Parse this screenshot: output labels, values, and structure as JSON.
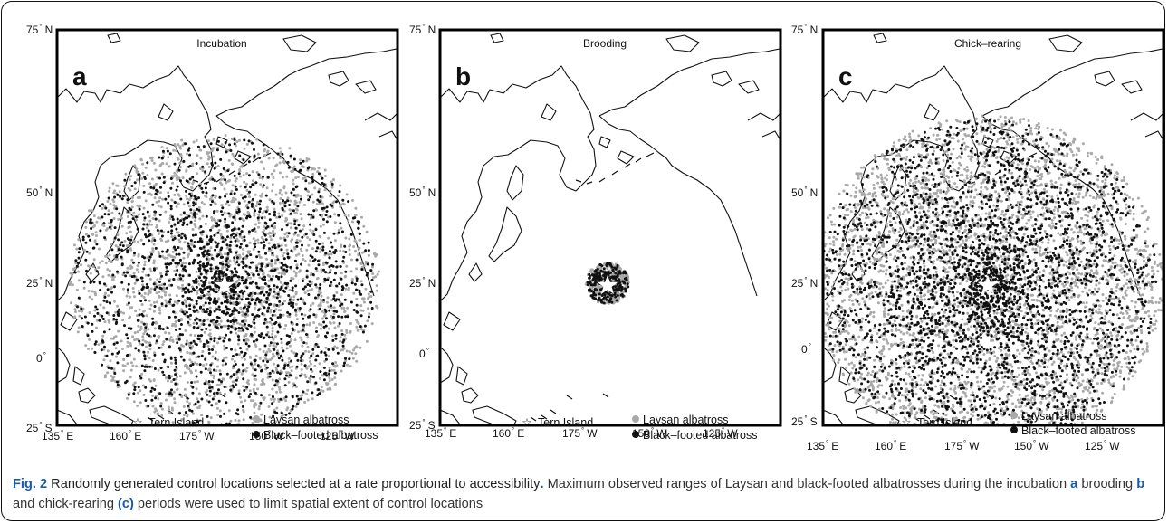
{
  "figure": {
    "caption": {
      "label": "Fig. 2",
      "title": "Randomly generated control locations selected at a rate proportional to accessibility",
      "title_end": ".",
      "text_1": " Maximum observed ranges of Laysan and black-footed albatrosses during the incubation ",
      "ref_a": "a",
      "text_2": " brooding ",
      "ref_b": "b",
      "text_3": " and chick-rearing ",
      "ref_c": "(c)",
      "text_4": " periods were used to limit spatial extent of control locations"
    },
    "panels": [
      {
        "letter": "a",
        "title": "Incubation",
        "spread": 1.0,
        "density": 1.0
      },
      {
        "letter": "b",
        "title": "Brooding",
        "spread": 0.14,
        "density": 0.16
      },
      {
        "letter": "c",
        "title": "Chick–rearing",
        "spread": 1.13,
        "density": 1.7
      }
    ],
    "lat_ticks": [
      {
        "deg": "75",
        "hemi": "N"
      },
      {
        "deg": "50",
        "hemi": "N"
      },
      {
        "deg": "25",
        "hemi": "N"
      },
      {
        "deg": "0",
        "hemi": ""
      },
      {
        "deg": "25",
        "hemi": "S"
      }
    ],
    "lon_ticks": [
      {
        "deg": "135",
        "hemi": "E"
      },
      {
        "deg": "160",
        "hemi": "E"
      },
      {
        "deg": "175",
        "hemi": "W"
      },
      {
        "deg": "150",
        "hemi": "W"
      },
      {
        "deg": "125",
        "hemi": "W"
      }
    ],
    "legend": {
      "site": "Tern Island",
      "species": [
        {
          "name": "Laysan albatross",
          "color": "#a9a9a9"
        },
        {
          "name": "Black–footed albatross",
          "color": "#111111"
        }
      ]
    }
  }
}
